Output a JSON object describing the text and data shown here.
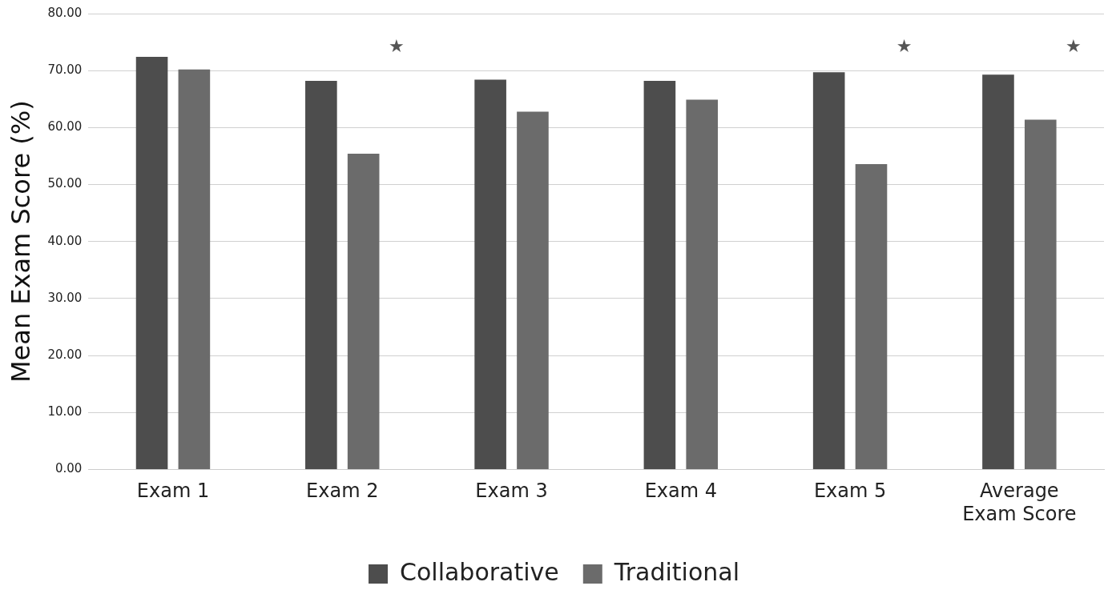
{
  "chart_data": {
    "type": "bar",
    "ylabel": "Mean Exam Score (%)",
    "categories": [
      "Exam 1",
      "Exam 2",
      "Exam 3",
      "Exam 4",
      "Exam 5",
      "Average Exam Score"
    ],
    "series": [
      {
        "name": "Collaborative",
        "color": "#4d4d4d",
        "values": [
          72.4,
          68.2,
          68.4,
          68.2,
          69.7,
          69.3
        ]
      },
      {
        "name": "Traditional",
        "color": "#6b6b6b",
        "values": [
          70.2,
          55.4,
          62.8,
          64.9,
          53.6,
          61.4
        ]
      }
    ],
    "ylim": [
      0,
      80
    ],
    "yticks": [
      {
        "value": 0,
        "label": "0.00"
      },
      {
        "value": 10,
        "label": "10.00"
      },
      {
        "value": 20,
        "label": "20.00"
      },
      {
        "value": 30,
        "label": "30.00"
      },
      {
        "value": 40,
        "label": "40.00"
      },
      {
        "value": 50,
        "label": "50.00"
      },
      {
        "value": 60,
        "label": "60.00"
      },
      {
        "value": 70,
        "label": "70.00"
      },
      {
        "value": 80,
        "label": "80.00"
      }
    ],
    "annotations": [
      "★",
      "★",
      "★"
    ],
    "grid": "y",
    "legend": "bottom"
  }
}
